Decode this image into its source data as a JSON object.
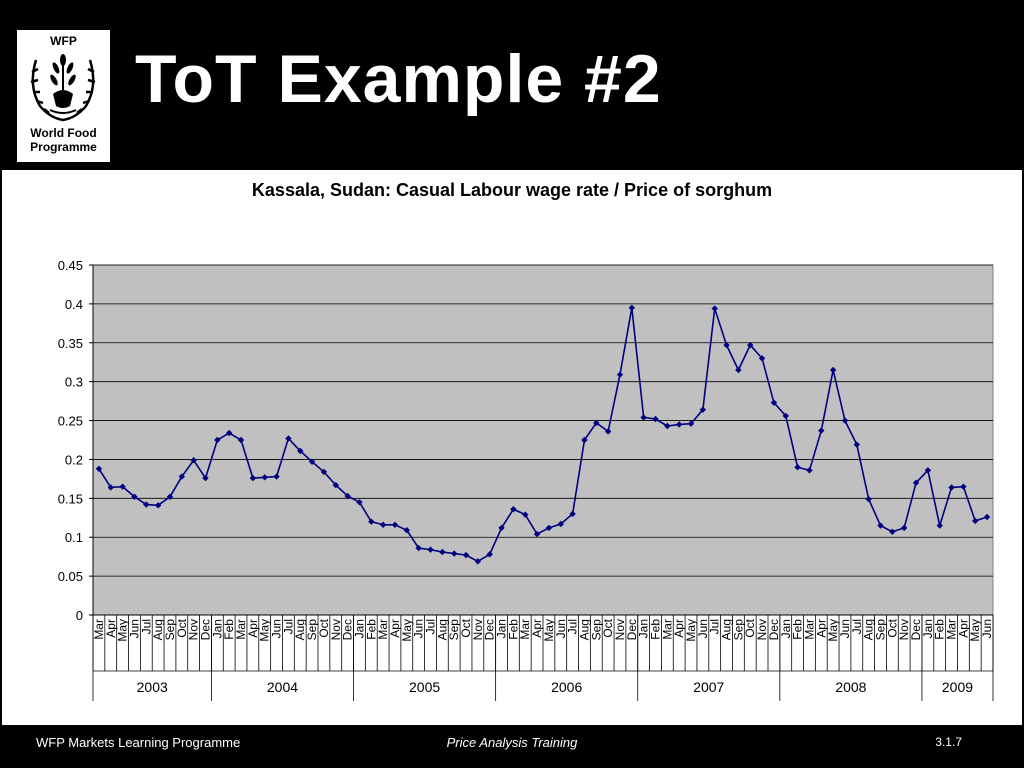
{
  "slide": {
    "title": "ToT Example #2"
  },
  "logo": {
    "top_text": "WFP",
    "line1": "World Food",
    "line2": "Programme",
    "emblem_icon": "wfp-wheat-emblem-icon"
  },
  "footer": {
    "left": "WFP Markets Learning Programme",
    "center": "Price Analysis Training",
    "right": "3.1.7"
  },
  "colors": {
    "series": "#000080",
    "plot_background": "#C0C0C0"
  },
  "chart_data": {
    "type": "line",
    "title": "Kassala, Sudan:  Casual Labour wage rate / Price of sorghum",
    "xlabel": "",
    "ylabel": "",
    "ylim": [
      0,
      0.45
    ],
    "yticks": [
      "0",
      "0.05",
      "0.1",
      "0.15",
      "0.2",
      "0.25",
      "0.3",
      "0.35",
      "0.4",
      "0.45"
    ],
    "grid": true,
    "legend": "none",
    "categories": [
      "Mar",
      "Apr",
      "May",
      "Jun",
      "Jul",
      "Aug",
      "Sep",
      "Oct",
      "Nov",
      "Dec",
      "Jan",
      "Feb",
      "Mar",
      "Apr",
      "May",
      "Jun",
      "Jul",
      "Aug",
      "Sep",
      "Oct",
      "Nov",
      "Dec",
      "Jan",
      "Feb",
      "Mar",
      "Apr",
      "May",
      "Jun",
      "Jul",
      "Aug",
      "Sep",
      "Oct",
      "Nov",
      "Dec",
      "Jan",
      "Feb",
      "Mar",
      "Apr",
      "May",
      "Jun",
      "Jul",
      "Aug",
      "Sep",
      "Oct",
      "Nov",
      "Dec",
      "Jan",
      "Feb",
      "Mar",
      "Apr",
      "May",
      "Jun",
      "Jul",
      "Aug",
      "Sep",
      "Oct",
      "Nov",
      "Dec",
      "Jan",
      "Feb",
      "Mar",
      "Apr",
      "May",
      "Jun",
      "Jul",
      "Aug",
      "Sep",
      "Oct",
      "Nov",
      "Dec",
      "Jan",
      "Feb",
      "Mar",
      "Apr",
      "May",
      "Jun"
    ],
    "years": [
      {
        "label": "2003",
        "months": 10
      },
      {
        "label": "2004",
        "months": 12
      },
      {
        "label": "2005",
        "months": 12
      },
      {
        "label": "2006",
        "months": 12
      },
      {
        "label": "2007",
        "months": 12
      },
      {
        "label": "2008",
        "months": 12
      },
      {
        "label": "2009",
        "months": 6
      }
    ],
    "series": [
      {
        "values": [
          0.188,
          0.164,
          0.165,
          0.152,
          0.142,
          0.141,
          0.152,
          0.178,
          0.199,
          0.176,
          0.225,
          0.234,
          0.225,
          0.176,
          0.177,
          0.178,
          0.227,
          0.211,
          0.197,
          0.184,
          0.167,
          0.153,
          0.145,
          0.12,
          0.116,
          0.116,
          0.109,
          0.086,
          0.084,
          0.081,
          0.079,
          0.077,
          0.069,
          0.078,
          0.112,
          0.136,
          0.129,
          0.104,
          0.112,
          0.117,
          0.13,
          0.225,
          0.247,
          0.236,
          0.309,
          0.395,
          0.254,
          0.252,
          0.243,
          0.245,
          0.246,
          0.264,
          0.394,
          0.347,
          0.315,
          0.347,
          0.33,
          0.273,
          0.256,
          0.19,
          0.186,
          0.237,
          0.315,
          0.25,
          0.219,
          0.149,
          0.115,
          0.107,
          0.112,
          0.17,
          0.186,
          0.115,
          0.164,
          0.165,
          0.121,
          0.126
        ]
      }
    ]
  }
}
